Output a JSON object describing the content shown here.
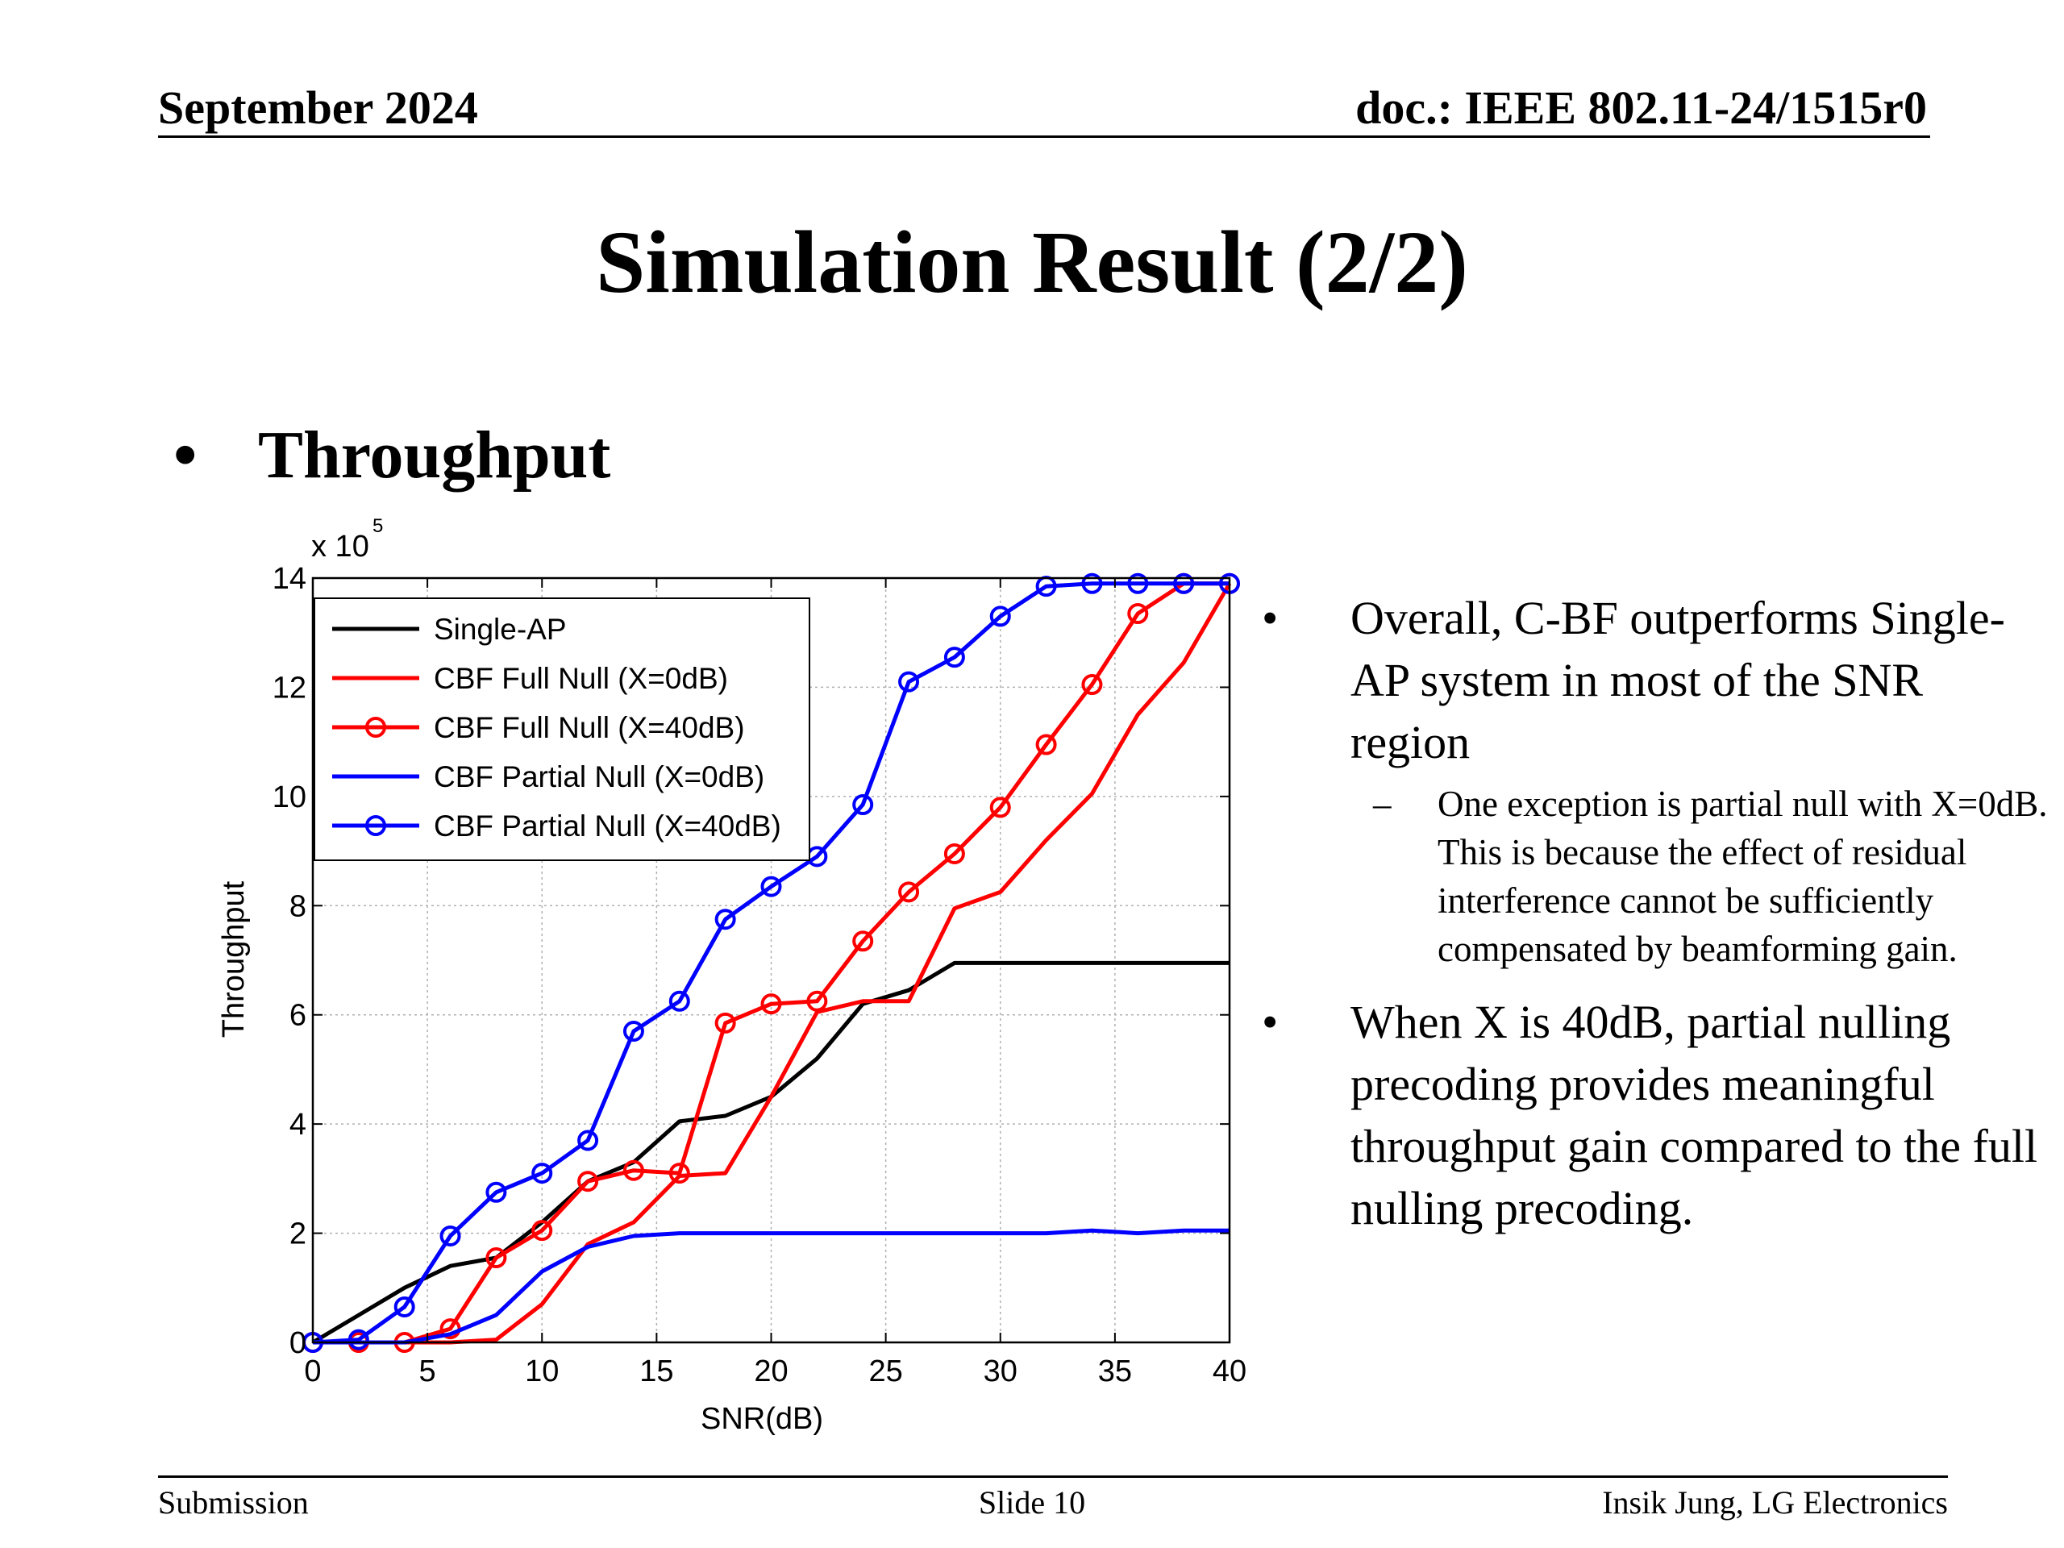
{
  "header": {
    "date": "September 2024",
    "doc": "doc.: IEEE 802.11-24/1515r0"
  },
  "title": "Simulation Result (2/2)",
  "bullet_main": "Throughput",
  "bullet_symbol": "•",
  "dash_symbol": "–",
  "right_text": {
    "b1": "Overall, C-BF outperforms Single-AP system in most of the SNR region",
    "b1_sub": "One exception is partial null with X=0dB. This is because the effect of residual interference cannot be sufficiently compensated by beamforming gain.",
    "b2": "When X is 40dB,  partial nulling precoding provides meaningful throughput gain compared to the full nulling precoding."
  },
  "footer": {
    "left": "Submission",
    "center": "Slide 10",
    "right": "Insik Jung, LG Electronics"
  },
  "chart_data": {
    "type": "line",
    "xlabel": "SNR(dB)",
    "ylabel": "Throughput",
    "scale_base": "x 10",
    "scale_exp": "5",
    "xlim": [
      0,
      40
    ],
    "ylim": [
      0,
      14
    ],
    "x_ticks": [
      0,
      5,
      10,
      15,
      20,
      25,
      30,
      35,
      40
    ],
    "y_ticks": [
      0,
      2,
      4,
      6,
      8,
      10,
      12,
      14
    ],
    "grid": true,
    "legend_position": "top-left",
    "series": [
      {
        "name": "Single-AP",
        "color": "#000000",
        "marker": "none",
        "x": [
          0,
          2,
          4,
          6,
          8,
          10,
          12,
          14,
          16,
          18,
          20,
          22,
          24,
          26,
          28,
          30,
          32,
          34,
          36,
          38,
          40
        ],
        "y": [
          0,
          0.5,
          1.0,
          1.4,
          1.55,
          2.2,
          2.95,
          3.3,
          4.05,
          4.15,
          4.5,
          5.2,
          6.2,
          6.45,
          6.95,
          6.95,
          6.95,
          6.95,
          6.95,
          6.95,
          6.95
        ]
      },
      {
        "name": "CBF Full Null (X=0dB)",
        "color": "#ff0000",
        "marker": "none",
        "x": [
          0,
          2,
          4,
          6,
          8,
          10,
          12,
          14,
          16,
          18,
          20,
          22,
          24,
          26,
          28,
          30,
          32,
          34,
          36,
          38,
          40
        ],
        "y": [
          0,
          0,
          0,
          0,
          0.05,
          0.7,
          1.8,
          2.2,
          3.05,
          3.1,
          4.5,
          6.05,
          6.25,
          6.25,
          7.95,
          8.25,
          9.2,
          10.05,
          11.5,
          12.45,
          13.9
        ]
      },
      {
        "name": "CBF Full Null (X=40dB)",
        "color": "#ff0000",
        "marker": "circle",
        "x": [
          0,
          2,
          4,
          6,
          8,
          10,
          12,
          14,
          16,
          18,
          20,
          22,
          24,
          26,
          28,
          30,
          32,
          34,
          36,
          38,
          40
        ],
        "y": [
          0,
          0,
          0,
          0.25,
          1.55,
          2.05,
          2.95,
          3.15,
          3.1,
          5.85,
          6.2,
          6.25,
          7.35,
          8.25,
          8.95,
          9.8,
          10.95,
          12.05,
          13.35,
          13.9,
          13.9
        ]
      },
      {
        "name": "CBF Partial Null (X=0dB)",
        "color": "#0000ff",
        "marker": "none",
        "x": [
          0,
          2,
          4,
          6,
          8,
          10,
          12,
          14,
          16,
          18,
          20,
          22,
          24,
          26,
          28,
          30,
          32,
          34,
          36,
          38,
          40
        ],
        "y": [
          0,
          0,
          0,
          0.15,
          0.5,
          1.3,
          1.75,
          1.95,
          2.0,
          2.0,
          2.0,
          2.0,
          2.0,
          2.0,
          2.0,
          2.0,
          2.0,
          2.05,
          2.0,
          2.05,
          2.05
        ]
      },
      {
        "name": "CBF Partial Null (X=40dB)",
        "color": "#0000ff",
        "marker": "circle",
        "x": [
          0,
          2,
          4,
          6,
          8,
          10,
          12,
          14,
          16,
          18,
          20,
          22,
          24,
          26,
          28,
          30,
          32,
          34,
          36,
          38,
          40
        ],
        "y": [
          0,
          0.05,
          0.65,
          1.95,
          2.75,
          3.1,
          3.7,
          5.7,
          6.25,
          7.75,
          8.35,
          8.9,
          9.85,
          12.1,
          12.55,
          13.3,
          13.85,
          13.9,
          13.9,
          13.9,
          13.9
        ]
      }
    ]
  }
}
